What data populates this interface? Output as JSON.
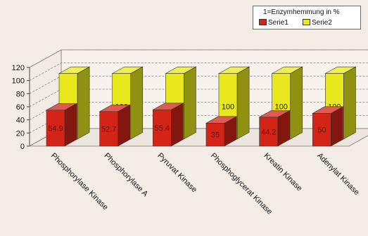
{
  "chart_data": {
    "type": "bar",
    "subtype": "3d-grouped-depth",
    "categories": [
      "Phosphorylase Kinase",
      "Phosphorylase A",
      "Pyruvat Kinase",
      "Phosphoglycerat Kinase",
      "Kreatin Kinase",
      "Adenylat Kinase"
    ],
    "series": [
      {
        "name": "Serie1",
        "values": [
          54.9,
          52.7,
          55.4,
          35,
          44.2,
          50
        ],
        "labels": [
          "54.9",
          "52.7",
          "55.4",
          "35",
          "44.2",
          "50"
        ],
        "color": "#d42418"
      },
      {
        "name": "Serie2",
        "values": [
          100,
          100,
          100,
          100,
          100,
          100
        ],
        "labels": [
          "100",
          "100",
          "100",
          "100",
          "100",
          "100"
        ],
        "color": "#e8e81c"
      }
    ],
    "yticks": [
      0,
      20,
      40,
      60,
      80,
      100,
      120
    ],
    "ylim": [
      0,
      120
    ],
    "grid": true,
    "legend": {
      "title": "1=Enzymhemmung in %",
      "placement": "top-right"
    }
  }
}
